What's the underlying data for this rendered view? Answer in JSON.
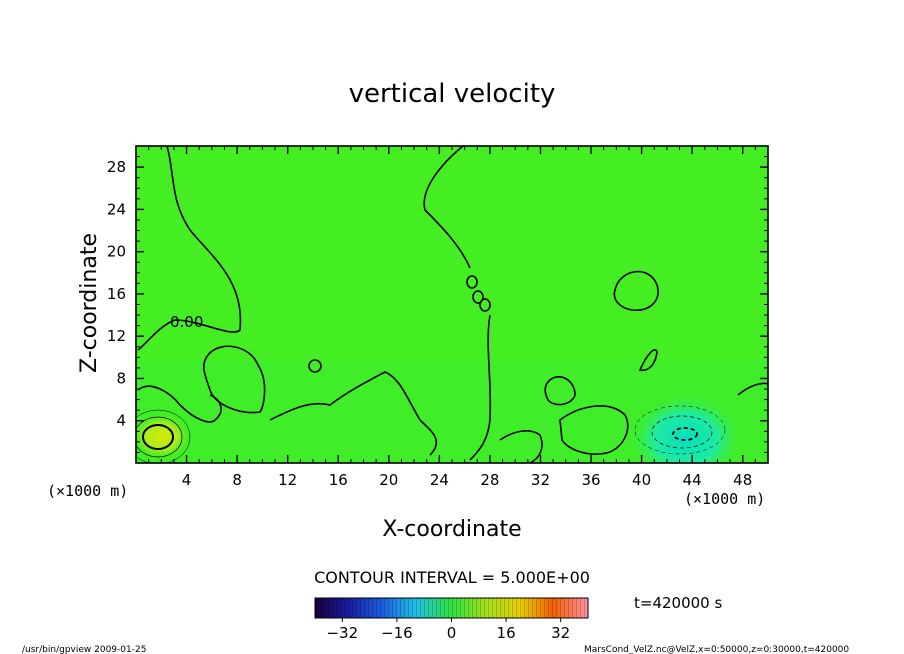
{
  "chart_data": {
    "type": "heatmap",
    "title": "vertical velocity",
    "xlabel": "X-coordinate",
    "ylabel": "Z-coordinate",
    "x_unit_left": "(×1000 m)",
    "x_unit_right": "(×1000 m)",
    "x_ticks": [
      "4",
      "8",
      "12",
      "16",
      "20",
      "24",
      "28",
      "32",
      "36",
      "40",
      "44",
      "48"
    ],
    "y_ticks": [
      "4",
      "8",
      "12",
      "16",
      "20",
      "24",
      "28"
    ],
    "xlim": [
      0,
      50
    ],
    "ylim": [
      0,
      30
    ],
    "contour_label": "0.00",
    "contour_interval_text": "CONTOUR INTERVAL = 5.000E+00",
    "time_text": "t=420000 s",
    "colorbar": {
      "ticks": [
        "−32",
        "−16",
        "0",
        "16",
        "32"
      ],
      "range": [
        -40,
        40
      ]
    },
    "features": [
      {
        "x": 2.0,
        "z": 2.5,
        "sign": "positive",
        "peak": 12
      },
      {
        "x": 43.5,
        "z": 2.3,
        "sign": "negative",
        "peak": -12
      }
    ]
  },
  "footer": {
    "left": "/usr/bin/gpview   2009-01-25",
    "right": "MarsCond_VelZ.nc@VelZ,x=0:50000,z=0:30000,t=420000"
  }
}
